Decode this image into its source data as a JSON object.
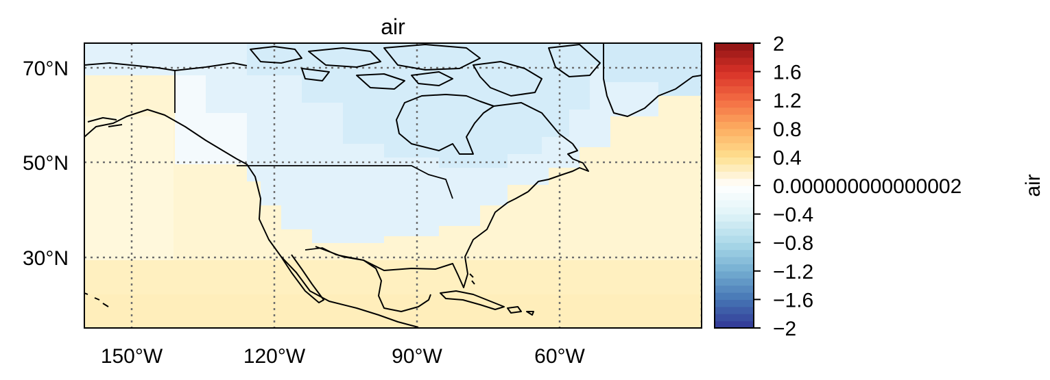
{
  "map": {
    "title": "air",
    "region": "North America",
    "projection": "PlateCarree",
    "extent": {
      "lon": [
        -160,
        -30
      ],
      "lat": [
        15,
        75
      ]
    },
    "gridlines": {
      "style": "dotted",
      "color": "#666666",
      "lon": [
        -150,
        -120,
        -90,
        -60,
        -30
      ],
      "lat": [
        30,
        50,
        70
      ]
    },
    "lat_ticks": [
      {
        "value": 70,
        "label": "70°N"
      },
      {
        "value": 50,
        "label": "50°N"
      },
      {
        "value": 30,
        "label": "30°N"
      }
    ],
    "lon_ticks": [
      {
        "value": -150,
        "label": "150°W"
      },
      {
        "value": -120,
        "label": "120°W"
      },
      {
        "value": -90,
        "label": "90°W"
      },
      {
        "value": -60,
        "label": "60°W"
      }
    ],
    "field_summary": {
      "north_land": "slightly negative (light blue)",
      "south_and_ocean": "slightly positive (pale yellow)"
    }
  },
  "colorbar": {
    "label": "air",
    "colormap": "RdYlBu_r",
    "range": [
      -2,
      2
    ],
    "tick_labels": [
      "2",
      "1.6",
      "1.2",
      "0.8",
      "0.4",
      "0.000000000000002",
      "−0.4",
      "−0.8",
      "−1.2",
      "−1.6",
      "−2"
    ],
    "tick_values": [
      2,
      1.6,
      1.2,
      0.8,
      0.4,
      0,
      -0.4,
      -0.8,
      -1.2,
      -1.6,
      -2
    ]
  }
}
